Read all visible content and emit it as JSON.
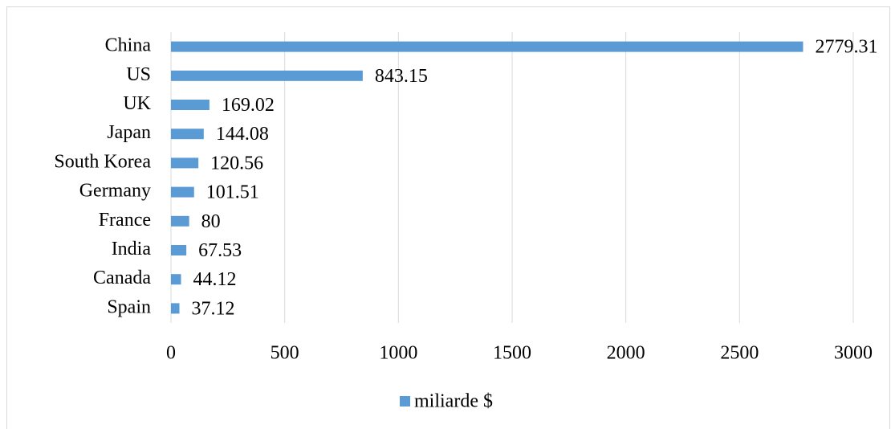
{
  "chart_data": {
    "type": "hbar",
    "categories": [
      "China",
      "US",
      "UK",
      "Japan",
      "South Korea",
      "Germany",
      "France",
      "India",
      "Canada",
      "Spain"
    ],
    "series": [
      {
        "name": "miliarde $",
        "color": "#5b9bd5",
        "values": [
          2779.31,
          843.15,
          169.02,
          144.08,
          120.56,
          101.51,
          80,
          67.53,
          44.12,
          37.12
        ]
      }
    ],
    "xlim": [
      0,
      3000
    ],
    "xticks": [
      0,
      500,
      1000,
      1500,
      2000,
      2500,
      3000
    ],
    "grid": true,
    "data_labels": true,
    "legend": "bottom"
  }
}
